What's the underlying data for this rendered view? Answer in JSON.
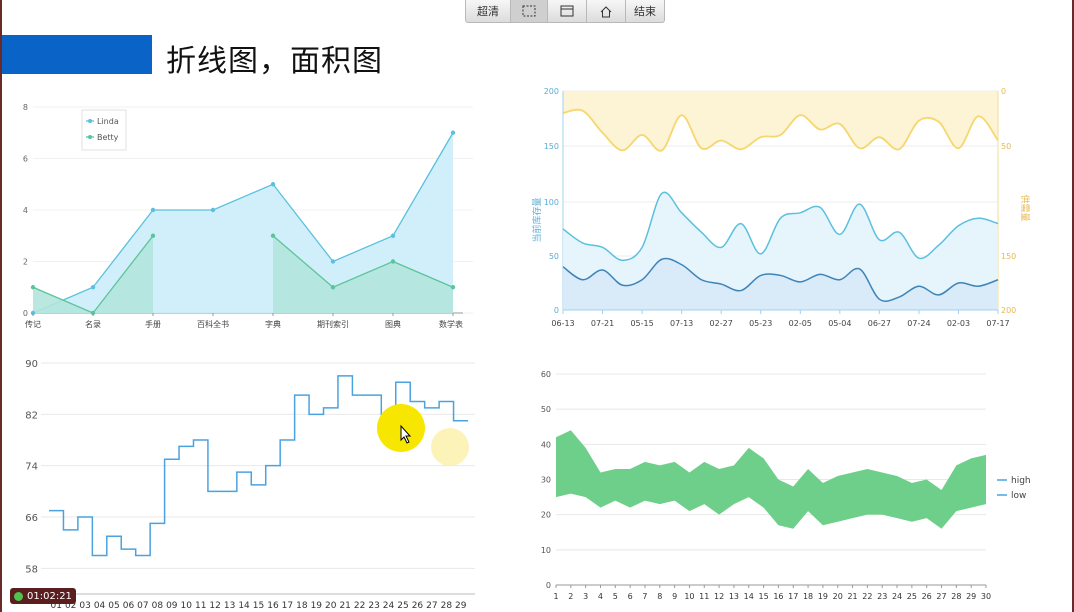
{
  "page_title": "折线图，面积图",
  "toolbar": {
    "items": [
      {
        "label": "超清",
        "icon": null
      },
      {
        "label": "",
        "icon": "selection-icon"
      },
      {
        "label": "",
        "icon": "window-icon"
      },
      {
        "label": "",
        "icon": "home-icon"
      },
      {
        "label": "结束",
        "icon": null
      }
    ]
  },
  "recording": {
    "time": "01:02:21"
  },
  "colors": {
    "blue": "#5bc0de",
    "blue_fill": "#cfeefa",
    "green": "#5cc49a",
    "green_fill": "#b2e4dd",
    "yellow": "#f5d76e",
    "yellow_fill": "#fdf3d5",
    "step": "#4aa3df",
    "band": "#6ecf8a"
  },
  "chart_data": [
    {
      "type": "area",
      "categories": [
        "传记",
        "名录",
        "手册",
        "百科全书",
        "字典",
        "期刊索引",
        "图典",
        "数学表"
      ],
      "ylim": [
        0,
        8
      ],
      "yticks": [
        "0",
        "2",
        "4",
        "6",
        "8"
      ],
      "legend": "top-left",
      "series": [
        {
          "name": "Linda",
          "values": [
            0,
            1,
            4,
            4,
            5,
            2,
            3,
            7
          ]
        },
        {
          "name": "Betty",
          "values": [
            1,
            0,
            3,
            null,
            3,
            1,
            2,
            1
          ]
        }
      ]
    },
    {
      "type": "area",
      "x": [
        "06-13",
        "07-21",
        "05-15",
        "07-13",
        "02-27",
        "05-23",
        "02-05",
        "05-04",
        "06-27",
        "07-24",
        "02-03",
        "07-17"
      ],
      "y_left_label": "当前库存量",
      "y_right_label": "供需量",
      "top_panel": {
        "yticks_left": [
          "150",
          "200"
        ],
        "yticks_right": [
          "0",
          "50"
        ],
        "values": [
          180,
          182,
          162,
          146,
          160,
          146,
          178,
          148,
          155,
          147,
          158,
          160,
          178,
          165,
          170,
          148,
          158,
          147,
          173,
          172,
          148,
          177,
          155
        ]
      },
      "bottom_panel": {
        "yticks_left": [
          "0",
          "50",
          "100"
        ],
        "yticks_right": [
          "150",
          "200"
        ],
        "series": [
          {
            "values": [
              75,
              62,
              58,
              46,
              58,
              108,
              90,
              72,
              58,
              80,
              52,
              85,
              90,
              95,
              70,
              98,
              65,
              72,
              48,
              60,
              78,
              85,
              80
            ]
          },
          {
            "values": [
              40,
              28,
              37,
              23,
              28,
              47,
              42,
              28,
              24,
              18,
              32,
              32,
              26,
              33,
              28,
              38,
              10,
              12,
              22,
              14,
              25,
              22,
              28
            ]
          }
        ]
      }
    },
    {
      "type": "line",
      "step": true,
      "x": [
        "01",
        "02",
        "03",
        "04",
        "05",
        "06",
        "07",
        "08",
        "09",
        "10",
        "11",
        "12",
        "13",
        "14",
        "15",
        "16",
        "17",
        "18",
        "19",
        "20",
        "21",
        "22",
        "23",
        "24",
        "25",
        "26",
        "27",
        "28",
        "29"
      ],
      "ylim": [
        54,
        90
      ],
      "yticks": [
        "58",
        "66",
        "74",
        "82",
        "90"
      ],
      "values": [
        67,
        64,
        66,
        60,
        63,
        61,
        60,
        65,
        75,
        77,
        78,
        70,
        70,
        73,
        71,
        74,
        78,
        85,
        82,
        83,
        88,
        85,
        85,
        81,
        87,
        84,
        83,
        84,
        81
      ]
    },
    {
      "type": "area",
      "x": [
        "1",
        "2",
        "3",
        "4",
        "5",
        "6",
        "7",
        "8",
        "9",
        "10",
        "11",
        "12",
        "13",
        "14",
        "15",
        "16",
        "17",
        "18",
        "19",
        "20",
        "21",
        "22",
        "23",
        "24",
        "25",
        "26",
        "27",
        "28",
        "29",
        "30"
      ],
      "ylim": [
        0,
        60
      ],
      "yticks": [
        "0",
        "10",
        "20",
        "30",
        "40",
        "50",
        "60"
      ],
      "legend": "right",
      "series": [
        {
          "name": "high",
          "values": [
            42,
            44,
            39,
            32,
            33,
            33,
            35,
            34,
            35,
            32,
            35,
            33,
            34,
            39,
            36,
            30,
            28,
            33,
            29,
            31,
            32,
            33,
            32,
            31,
            29,
            30,
            27,
            34,
            36,
            37
          ]
        },
        {
          "name": "low",
          "values": [
            25,
            26,
            25,
            22,
            24,
            22,
            24,
            23,
            24,
            21,
            23,
            20,
            23,
            25,
            22,
            17,
            16,
            21,
            17,
            18,
            19,
            20,
            20,
            19,
            18,
            19,
            16,
            21,
            22,
            23
          ]
        }
      ]
    }
  ]
}
